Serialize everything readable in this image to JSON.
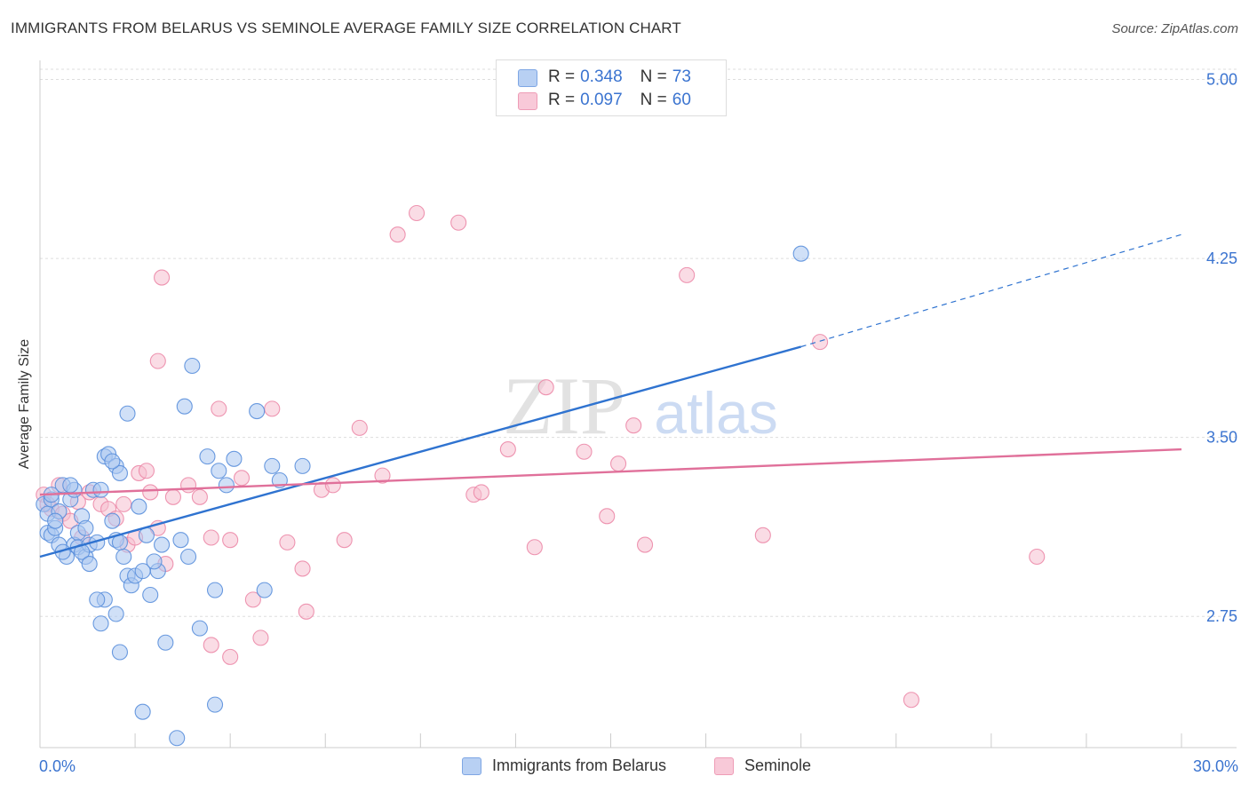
{
  "header": {
    "title": "IMMIGRANTS FROM BELARUS VS SEMINOLE AVERAGE FAMILY SIZE CORRELATION CHART",
    "source": "Source: ZipAtlas.com"
  },
  "watermark": {
    "zip": "ZIP",
    "atlas": "atlas"
  },
  "legend_box": {
    "rows": [
      {
        "r_label": "R =",
        "r_value": "0.348",
        "n_label": "N =",
        "n_value": "73"
      },
      {
        "r_label": "R =",
        "r_value": "0.097",
        "n_label": "N =",
        "n_value": "60"
      }
    ]
  },
  "colors": {
    "blue_fill": "#a9c6f0",
    "blue_stroke": "#5a8fdc",
    "blue_line": "#2f73d0",
    "pink_fill": "#f6bfd0",
    "pink_stroke": "#ec8aa9",
    "pink_line": "#e0709a",
    "tick_label": "#3b74d0",
    "grid": "#dddddd"
  },
  "chart_data": {
    "type": "scatter",
    "title": "IMMIGRANTS FROM BELARUS VS SEMINOLE AVERAGE FAMILY SIZE CORRELATION CHART",
    "xlabel": "",
    "ylabel": "Average Family Size",
    "xlim": [
      0,
      30
    ],
    "ylim": [
      2.2,
      5.08
    ],
    "x_tick_labels": [
      "0.0%",
      "30.0%"
    ],
    "y_ticks": [
      2.75,
      3.5,
      4.25,
      5.0
    ],
    "y_tick_labels": [
      "2.75",
      "3.50",
      "4.25",
      "5.00"
    ],
    "grid": true,
    "legend_placement": "bottom",
    "series": [
      {
        "name": "Immigrants from Belarus",
        "R": 0.348,
        "N": 73,
        "trend": {
          "x0": 0.0,
          "y0": 3.0,
          "x1": 20.0,
          "y1": 3.88,
          "dashed_to_x": 30.0,
          "dashed_to_y": 4.35
        },
        "points": [
          [
            0.1,
            3.22
          ],
          [
            0.2,
            3.18
          ],
          [
            0.3,
            3.24
          ],
          [
            0.2,
            3.1
          ],
          [
            0.3,
            3.09
          ],
          [
            0.4,
            3.12
          ],
          [
            0.5,
            3.19
          ],
          [
            0.4,
            3.15
          ],
          [
            0.6,
            3.3
          ],
          [
            0.5,
            3.05
          ],
          [
            0.7,
            3.0
          ],
          [
            0.8,
            3.24
          ],
          [
            0.9,
            3.28
          ],
          [
            0.9,
            3.05
          ],
          [
            0.6,
            3.02
          ],
          [
            1.0,
            3.1
          ],
          [
            1.1,
            3.17
          ],
          [
            1.0,
            3.04
          ],
          [
            1.2,
            3.0
          ],
          [
            1.3,
            3.05
          ],
          [
            1.4,
            3.28
          ],
          [
            1.5,
            3.06
          ],
          [
            1.1,
            3.02
          ],
          [
            1.3,
            2.97
          ],
          [
            1.2,
            3.12
          ],
          [
            1.6,
            3.28
          ],
          [
            1.7,
            3.42
          ],
          [
            1.8,
            3.43
          ],
          [
            2.0,
            3.38
          ],
          [
            1.9,
            3.15
          ],
          [
            2.0,
            3.07
          ],
          [
            2.1,
            3.06
          ],
          [
            2.2,
            3.0
          ],
          [
            2.3,
            2.92
          ],
          [
            2.4,
            2.88
          ],
          [
            1.7,
            2.82
          ],
          [
            1.5,
            2.82
          ],
          [
            1.6,
            2.72
          ],
          [
            2.0,
            2.76
          ],
          [
            2.5,
            2.92
          ],
          [
            2.6,
            3.21
          ],
          [
            2.8,
            3.09
          ],
          [
            2.7,
            2.94
          ],
          [
            2.9,
            2.84
          ],
          [
            3.1,
            2.94
          ],
          [
            3.0,
            2.98
          ],
          [
            3.3,
            2.64
          ],
          [
            3.2,
            3.05
          ],
          [
            3.7,
            3.07
          ],
          [
            3.8,
            3.63
          ],
          [
            4.0,
            3.8
          ],
          [
            3.9,
            3.0
          ],
          [
            4.2,
            2.7
          ],
          [
            4.4,
            3.42
          ],
          [
            4.6,
            2.86
          ],
          [
            4.7,
            3.36
          ],
          [
            4.9,
            3.3
          ],
          [
            5.1,
            3.41
          ],
          [
            5.7,
            3.61
          ],
          [
            5.9,
            2.86
          ],
          [
            6.1,
            3.38
          ],
          [
            6.3,
            3.32
          ],
          [
            2.1,
            2.6
          ],
          [
            2.7,
            2.35
          ],
          [
            3.6,
            2.24
          ],
          [
            4.6,
            2.38
          ],
          [
            2.1,
            3.35
          ],
          [
            0.8,
            3.3
          ],
          [
            0.3,
            3.26
          ],
          [
            1.9,
            3.4
          ],
          [
            6.9,
            3.38
          ],
          [
            20.0,
            4.27
          ],
          [
            2.3,
            3.6
          ]
        ]
      },
      {
        "name": "Seminole",
        "R": 0.097,
        "N": 60,
        "trend": {
          "x0": 0.0,
          "y0": 3.26,
          "x1": 30.0,
          "y1": 3.45
        },
        "points": [
          [
            0.1,
            3.26
          ],
          [
            0.2,
            3.22
          ],
          [
            0.3,
            3.2
          ],
          [
            0.5,
            3.3
          ],
          [
            0.6,
            3.18
          ],
          [
            0.8,
            3.15
          ],
          [
            1.0,
            3.23
          ],
          [
            1.1,
            3.08
          ],
          [
            1.3,
            3.27
          ],
          [
            1.6,
            3.22
          ],
          [
            1.8,
            3.2
          ],
          [
            2.0,
            3.16
          ],
          [
            2.2,
            3.22
          ],
          [
            2.3,
            3.05
          ],
          [
            2.5,
            3.08
          ],
          [
            2.6,
            3.35
          ],
          [
            2.8,
            3.36
          ],
          [
            2.9,
            3.27
          ],
          [
            3.1,
            3.12
          ],
          [
            3.3,
            2.97
          ],
          [
            3.5,
            3.25
          ],
          [
            3.9,
            3.3
          ],
          [
            4.2,
            3.25
          ],
          [
            4.5,
            3.08
          ],
          [
            4.7,
            3.62
          ],
          [
            5.0,
            3.07
          ],
          [
            5.3,
            3.33
          ],
          [
            5.6,
            2.82
          ],
          [
            5.8,
            2.66
          ],
          [
            6.1,
            3.62
          ],
          [
            6.5,
            3.06
          ],
          [
            6.9,
            2.95
          ],
          [
            7.4,
            3.28
          ],
          [
            7.7,
            3.3
          ],
          [
            8.0,
            3.07
          ],
          [
            8.4,
            3.54
          ],
          [
            9.0,
            3.34
          ],
          [
            9.4,
            4.35
          ],
          [
            9.9,
            4.44
          ],
          [
            11.0,
            4.4
          ],
          [
            11.4,
            3.26
          ],
          [
            11.6,
            3.27
          ],
          [
            12.3,
            3.45
          ],
          [
            13.0,
            3.04
          ],
          [
            13.3,
            3.71
          ],
          [
            14.3,
            3.44
          ],
          [
            14.9,
            3.17
          ],
          [
            15.2,
            3.39
          ],
          [
            15.6,
            3.55
          ],
          [
            15.9,
            3.05
          ],
          [
            17.0,
            4.18
          ],
          [
            19.0,
            3.09
          ],
          [
            20.5,
            3.9
          ],
          [
            22.9,
            2.4
          ],
          [
            26.2,
            3.0
          ],
          [
            3.1,
            3.82
          ],
          [
            3.2,
            4.17
          ],
          [
            4.5,
            2.63
          ],
          [
            5.0,
            2.58
          ],
          [
            7.0,
            2.77
          ]
        ]
      }
    ]
  },
  "bottom_legend": {
    "items": [
      {
        "label": "Immigrants from Belarus"
      },
      {
        "label": "Seminole"
      }
    ]
  }
}
